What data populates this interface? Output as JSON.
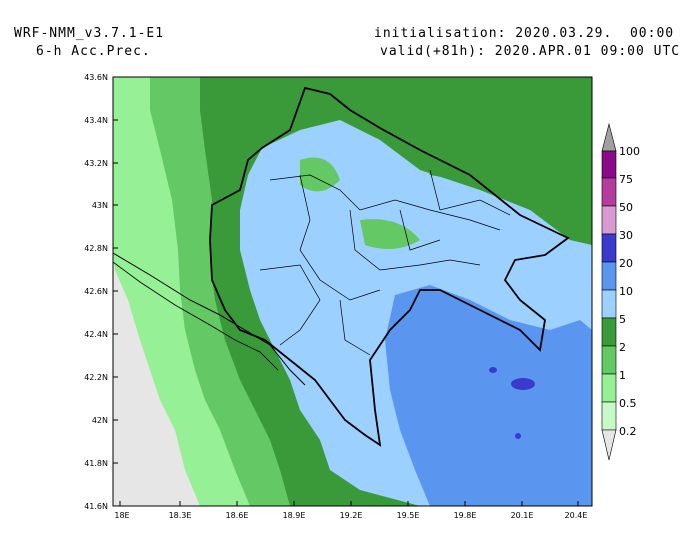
{
  "header": {
    "model": "WRF-NMM_v3.7.1-E1",
    "field": "6-h Acc.Prec.",
    "init": "initialisation: 2020.03.29.  00:00 UTC",
    "valid": "valid(+81h): 2020.APR.01 09:00 UTC"
  },
  "axes": {
    "lat_labels": [
      "43.6N",
      "43.4N",
      "43.2N",
      "43N",
      "42.8N",
      "42.6N",
      "42.4N",
      "42.2N",
      "42N",
      "41.8N",
      "41.6N"
    ],
    "lon_labels": [
      "18E",
      "18.3E",
      "18.6E",
      "18.9E",
      "19.2E",
      "19.5E",
      "19.8E",
      "20.1E",
      "20.4E"
    ]
  },
  "legend": {
    "labels": [
      "100",
      "75",
      "50",
      "30",
      "20",
      "10",
      "5",
      "2",
      "1",
      "0.5",
      "0.2"
    ],
    "colors": [
      "#8b0a8a",
      "#b43c9c",
      "#d89ad0",
      "#3a3acc",
      "#5a96f0",
      "#9cd0ff",
      "#3a9a3a",
      "#64c864",
      "#96f096",
      "#c8fac8",
      "#e6e6e6"
    ],
    "top_cap_color": "#a0a0a0"
  },
  "map_colors": {
    "sea": "#e6e6e6",
    "light_green": "#96f096",
    "green": "#64c864",
    "dark_green": "#3a9a3a",
    "light_blue": "#9cd0ff",
    "blue": "#5a96f0",
    "deep_blue": "#3a3acc"
  }
}
